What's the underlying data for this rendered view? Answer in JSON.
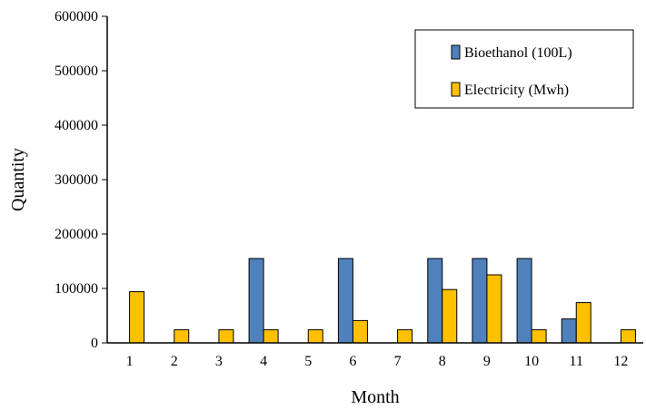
{
  "chart_data": {
    "type": "bar",
    "xlabel": "Month",
    "ylabel": "Quantity",
    "ylim": [
      0,
      600000
    ],
    "yticks": [
      "0",
      "100000",
      "200000",
      "300000",
      "400000",
      "500000",
      "600000"
    ],
    "categories": [
      "1",
      "2",
      "3",
      "4",
      "5",
      "6",
      "7",
      "8",
      "9",
      "10",
      "11",
      "12"
    ],
    "grid": false,
    "legend_position": "top-right",
    "series": [
      {
        "name": "Bioethanol (100L)",
        "color": "#4f81bd",
        "values": [
          0,
          0,
          0,
          155000,
          0,
          155000,
          0,
          155000,
          155000,
          155000,
          44000,
          0
        ]
      },
      {
        "name": "Electricity (Mwh)",
        "color": "#ffc000",
        "values": [
          94000,
          24000,
          24000,
          24000,
          24000,
          41000,
          24000,
          98000,
          125000,
          24000,
          74000,
          24000
        ]
      }
    ]
  }
}
